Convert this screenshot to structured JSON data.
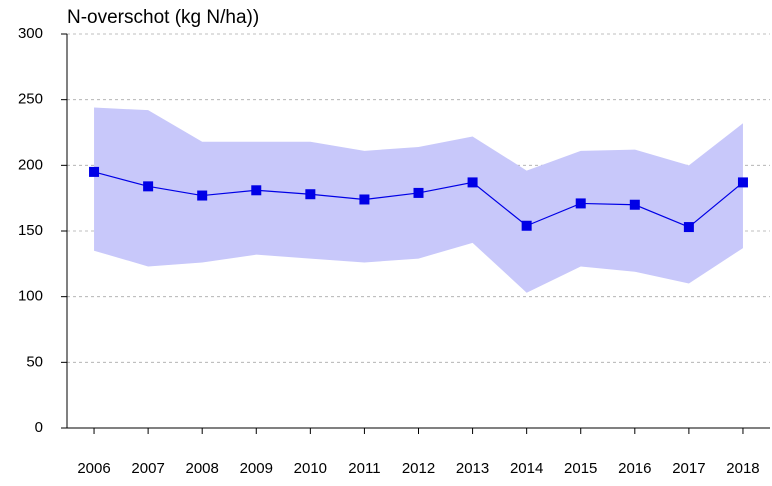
{
  "chart_data": {
    "type": "line",
    "title": "N-overschot (kg N/ha))",
    "categories": [
      "2006",
      "2007",
      "2008",
      "2009",
      "2010",
      "2011",
      "2012",
      "2013",
      "2014",
      "2015",
      "2016",
      "2017",
      "2018"
    ],
    "series": [
      {
        "color": "#0000e6",
        "values": [
          195,
          184,
          177,
          181,
          178,
          174,
          179,
          187,
          154,
          171,
          170,
          153,
          187
        ]
      }
    ],
    "band": {
      "color": "#c8c8fa",
      "upper": [
        244,
        242,
        218,
        218,
        218,
        211,
        214,
        222,
        196,
        211,
        212,
        200,
        232
      ],
      "lower": [
        135,
        123,
        126,
        132,
        129,
        126,
        129,
        141,
        103,
        123,
        119,
        110,
        137
      ]
    },
    "ylim": [
      0,
      300
    ],
    "yticks": [
      0,
      50,
      100,
      150,
      200,
      250,
      300
    ],
    "grid": true
  }
}
